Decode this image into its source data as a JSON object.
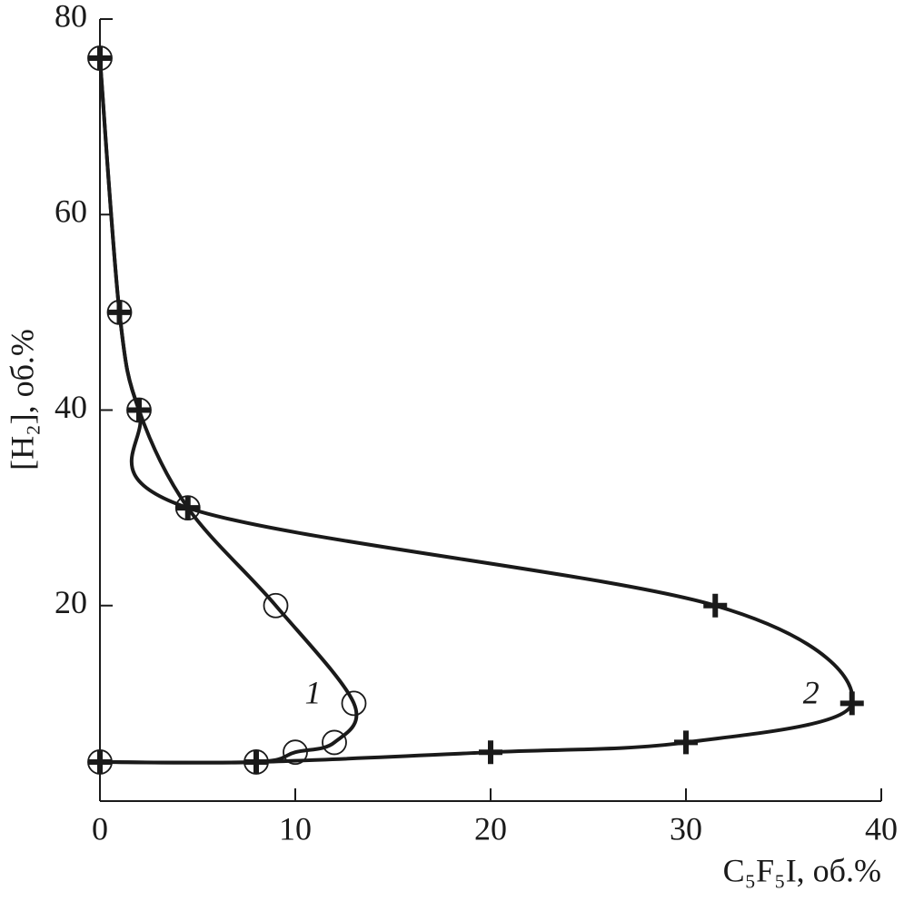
{
  "chart_data": {
    "type": "line",
    "x_label": "C₅F₅I, об.%",
    "y_label": "[H₂], об.%",
    "xlim": [
      0,
      40
    ],
    "xticks": [
      0,
      10,
      20,
      30,
      40
    ],
    "ylim": [
      0,
      80
    ],
    "yticks": [
      20,
      40,
      60,
      80
    ],
    "series": [
      {
        "name": "1",
        "color": "#1a1a1a",
        "marker": "circle",
        "x": [
          0,
          1,
          2,
          4.5,
          9,
          13,
          12,
          10,
          8,
          0
        ],
        "values": [
          76,
          50,
          40,
          30,
          20,
          10,
          6,
          5,
          4,
          4
        ]
      },
      {
        "name": "2",
        "color": "#1a1a1a",
        "marker": "cross",
        "x": [
          0,
          1,
          2,
          4.5,
          31.5,
          38.5,
          30,
          20,
          8,
          0
        ],
        "values": [
          76,
          50,
          40,
          30,
          20,
          10,
          6,
          5,
          4,
          4
        ]
      }
    ]
  }
}
